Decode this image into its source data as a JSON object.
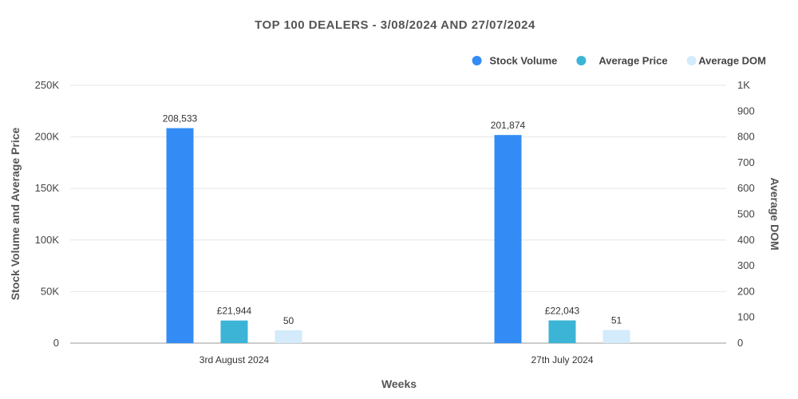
{
  "chart_data": {
    "type": "bar",
    "title": "TOP  100  DEALERS  -   3/08/2024  AND  27/07/2024",
    "xlabel": "Weeks",
    "ylabel": "Stock Volume and Average Price",
    "ylabel_right": "Average DOM",
    "categories": [
      "3rd August 2024",
      "27th July 2024"
    ],
    "ylim": [
      0,
      250000
    ],
    "ylim_right": [
      0,
      1000
    ],
    "yticks": [
      "0",
      "50K",
      "100K",
      "150K",
      "200K",
      "250K"
    ],
    "yticks_right": [
      "0",
      "100",
      "200",
      "300",
      "400",
      "500",
      "600",
      "700",
      "800",
      "900",
      "1K"
    ],
    "legend_position": "top-right",
    "series": [
      {
        "name": "Stock Volume",
        "axis": "left",
        "color": "#338cf5",
        "values": [
          208533,
          201874
        ],
        "labels": [
          "208,533",
          "201,874"
        ]
      },
      {
        "name": "Average Price",
        "axis": "left",
        "color": "#3bb4d6",
        "values": [
          21944,
          22043
        ],
        "labels": [
          "£21,944",
          "£22,043"
        ]
      },
      {
        "name": "Average DOM",
        "axis": "right",
        "color": "#d3ebfa",
        "values": [
          50,
          51
        ],
        "labels": [
          "50",
          "51"
        ]
      }
    ]
  }
}
